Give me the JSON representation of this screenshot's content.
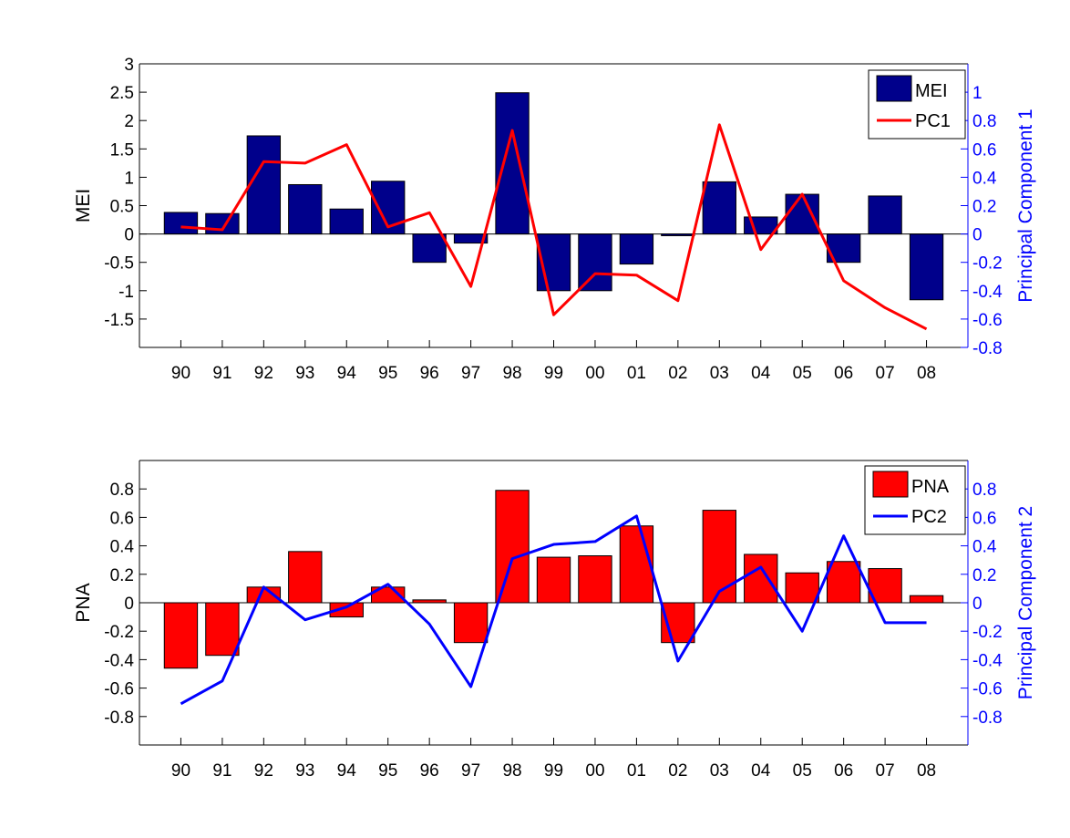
{
  "chart_data": [
    {
      "type": "bar",
      "categories": [
        "90",
        "91",
        "92",
        "93",
        "94",
        "95",
        "96",
        "97",
        "98",
        "99",
        "00",
        "01",
        "02",
        "03",
        "04",
        "05",
        "06",
        "07",
        "08"
      ],
      "bar_series": {
        "name": "MEI",
        "color": "#00008b",
        "values": [
          0.38,
          0.36,
          1.73,
          0.87,
          0.44,
          0.93,
          -0.5,
          -0.16,
          2.49,
          -1.0,
          -1.0,
          -0.53,
          -0.03,
          0.92,
          0.3,
          0.7,
          -0.5,
          0.67,
          -1.16
        ]
      },
      "line_series": {
        "name": "PC1",
        "color": "#ff0000",
        "values": [
          0.05,
          0.03,
          0.51,
          0.5,
          0.63,
          0.05,
          0.15,
          -0.37,
          0.73,
          -0.57,
          -0.28,
          -0.29,
          -0.47,
          0.77,
          -0.11,
          0.28,
          -0.33,
          -0.52,
          -0.67
        ]
      },
      "ylabel": "MEI",
      "ylabel_right": "Principal Component 1",
      "ylim": [
        -2,
        3
      ],
      "ylim_right": [
        -0.8,
        1.2
      ],
      "yticks": [
        "3",
        "2.5",
        "2",
        "1.5",
        "1",
        "0.5",
        "0",
        "-0.5",
        "-1",
        "-1.5"
      ],
      "yticks_right": [
        "1",
        "0.8",
        "0.6",
        "0.4",
        "0.2",
        "0",
        "-0.2",
        "-0.4",
        "-0.6",
        "-0.8"
      ],
      "legend": [
        "MEI",
        "PC1"
      ],
      "legend_position": "top-right",
      "grid": false
    },
    {
      "type": "bar",
      "categories": [
        "90",
        "91",
        "92",
        "93",
        "94",
        "95",
        "96",
        "97",
        "98",
        "99",
        "00",
        "01",
        "02",
        "03",
        "04",
        "05",
        "06",
        "07",
        "08"
      ],
      "bar_series": {
        "name": "PNA",
        "color": "#ff0000",
        "values": [
          -0.46,
          -0.37,
          0.11,
          0.36,
          -0.1,
          0.11,
          0.02,
          -0.28,
          0.79,
          0.32,
          0.33,
          0.54,
          -0.28,
          0.65,
          0.34,
          0.21,
          0.29,
          0.24,
          0.05
        ]
      },
      "line_series": {
        "name": "PC2",
        "color": "#0000ff",
        "values": [
          -0.71,
          -0.55,
          0.11,
          -0.12,
          -0.03,
          0.13,
          -0.15,
          -0.59,
          0.31,
          0.41,
          0.43,
          0.61,
          -0.41,
          0.08,
          0.25,
          -0.2,
          0.47,
          -0.14,
          -0.14
        ]
      },
      "ylabel": "PNA",
      "ylabel_right": "Principal Component 2",
      "ylim": [
        -1,
        1
      ],
      "ylim_right": [
        -1,
        1
      ],
      "yticks": [
        "0.8",
        "0.6",
        "0.4",
        "0.2",
        "0",
        "-0.2",
        "-0.4",
        "-0.6",
        "-0.8"
      ],
      "yticks_right": [
        "0.8",
        "0.6",
        "0.4",
        "0.2",
        "0",
        "-0.2",
        "-0.4",
        "-0.6",
        "-0.8"
      ],
      "legend": [
        "PNA",
        "PC2"
      ],
      "legend_position": "top-right",
      "grid": false
    }
  ]
}
